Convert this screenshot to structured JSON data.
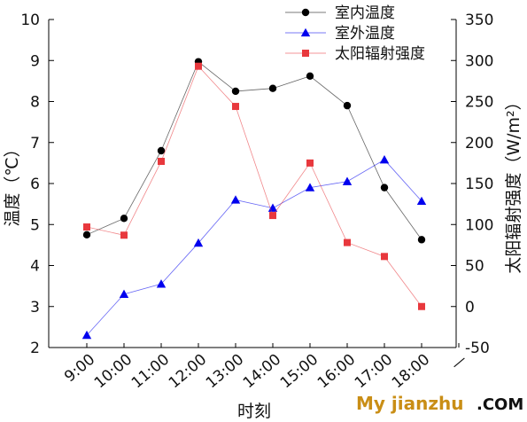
{
  "chart_data": {
    "type": "line",
    "categories": [
      "9:00",
      "10:00",
      "11:00",
      "12:00",
      "13:00",
      "14:00",
      "15:00",
      "16:00",
      "17:00",
      "18:00"
    ],
    "x_axis_extra_tick": "—",
    "xlabel": "时刻",
    "ylabel": "温度（℃）",
    "y2label": "太阳辐射强度（W/m²）",
    "ylim": [
      2,
      10
    ],
    "y2lim": [
      -50,
      350
    ],
    "yticks": [
      2,
      3,
      4,
      5,
      6,
      7,
      8,
      9,
      10
    ],
    "y2ticks": [
      -50,
      0,
      50,
      100,
      150,
      200,
      250,
      300,
      350
    ],
    "legend_position": "top-right",
    "series": [
      {
        "name": "室内温度",
        "axis": "left",
        "marker": "circle",
        "color": "#000000",
        "values": [
          4.75,
          5.15,
          6.8,
          8.97,
          8.25,
          8.32,
          8.62,
          7.9,
          5.9,
          4.63
        ]
      },
      {
        "name": "室外温度",
        "axis": "left",
        "marker": "triangle",
        "color": "#0000ee",
        "values": [
          2.3,
          3.3,
          3.55,
          4.55,
          5.6,
          5.4,
          5.9,
          6.05,
          6.58,
          5.57
        ]
      },
      {
        "name": "太阳辐射强度",
        "axis": "right",
        "marker": "square",
        "color": "#e8383d",
        "values": [
          97,
          87,
          177,
          293,
          244,
          111,
          175,
          78,
          61,
          0
        ]
      }
    ]
  },
  "watermark": {
    "part1": "My jianzhu",
    "part2": ".COM"
  }
}
